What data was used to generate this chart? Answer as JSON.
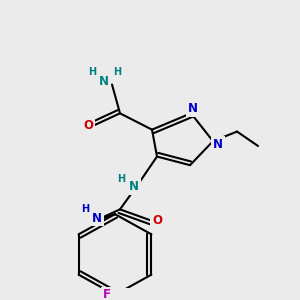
{
  "bg_color": "#ebebeb",
  "bond_color": "#000000",
  "bond_width": 1.5,
  "atom_colors": {
    "N_blue": "#0000cc",
    "N_teal": "#008080",
    "O": "#cc0000",
    "F": "#bb00bb",
    "H": "#008080"
  },
  "font_size_atom": 8.5,
  "font_size_h": 7.0,
  "figsize": [
    3.0,
    3.0
  ],
  "dpi": 100,
  "xlim": [
    0,
    300
  ],
  "ylim": [
    0,
    300
  ]
}
